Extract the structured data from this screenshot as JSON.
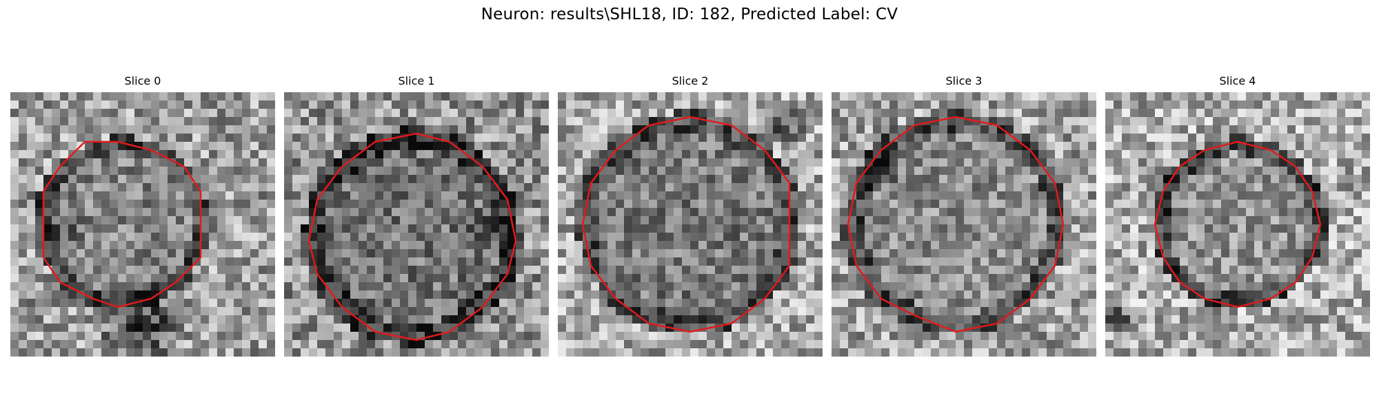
{
  "figure": {
    "title": "Neuron: results\\SHL18, ID: 182, Predicted Label: CV"
  },
  "slices": [
    {
      "title": "Slice 0"
    },
    {
      "title": "Slice 1"
    },
    {
      "title": "Slice 2"
    },
    {
      "title": "Slice 3"
    },
    {
      "title": "Slice 4"
    }
  ],
  "colors": {
    "contour": "#e31a1c",
    "background": "#ffffff"
  }
}
